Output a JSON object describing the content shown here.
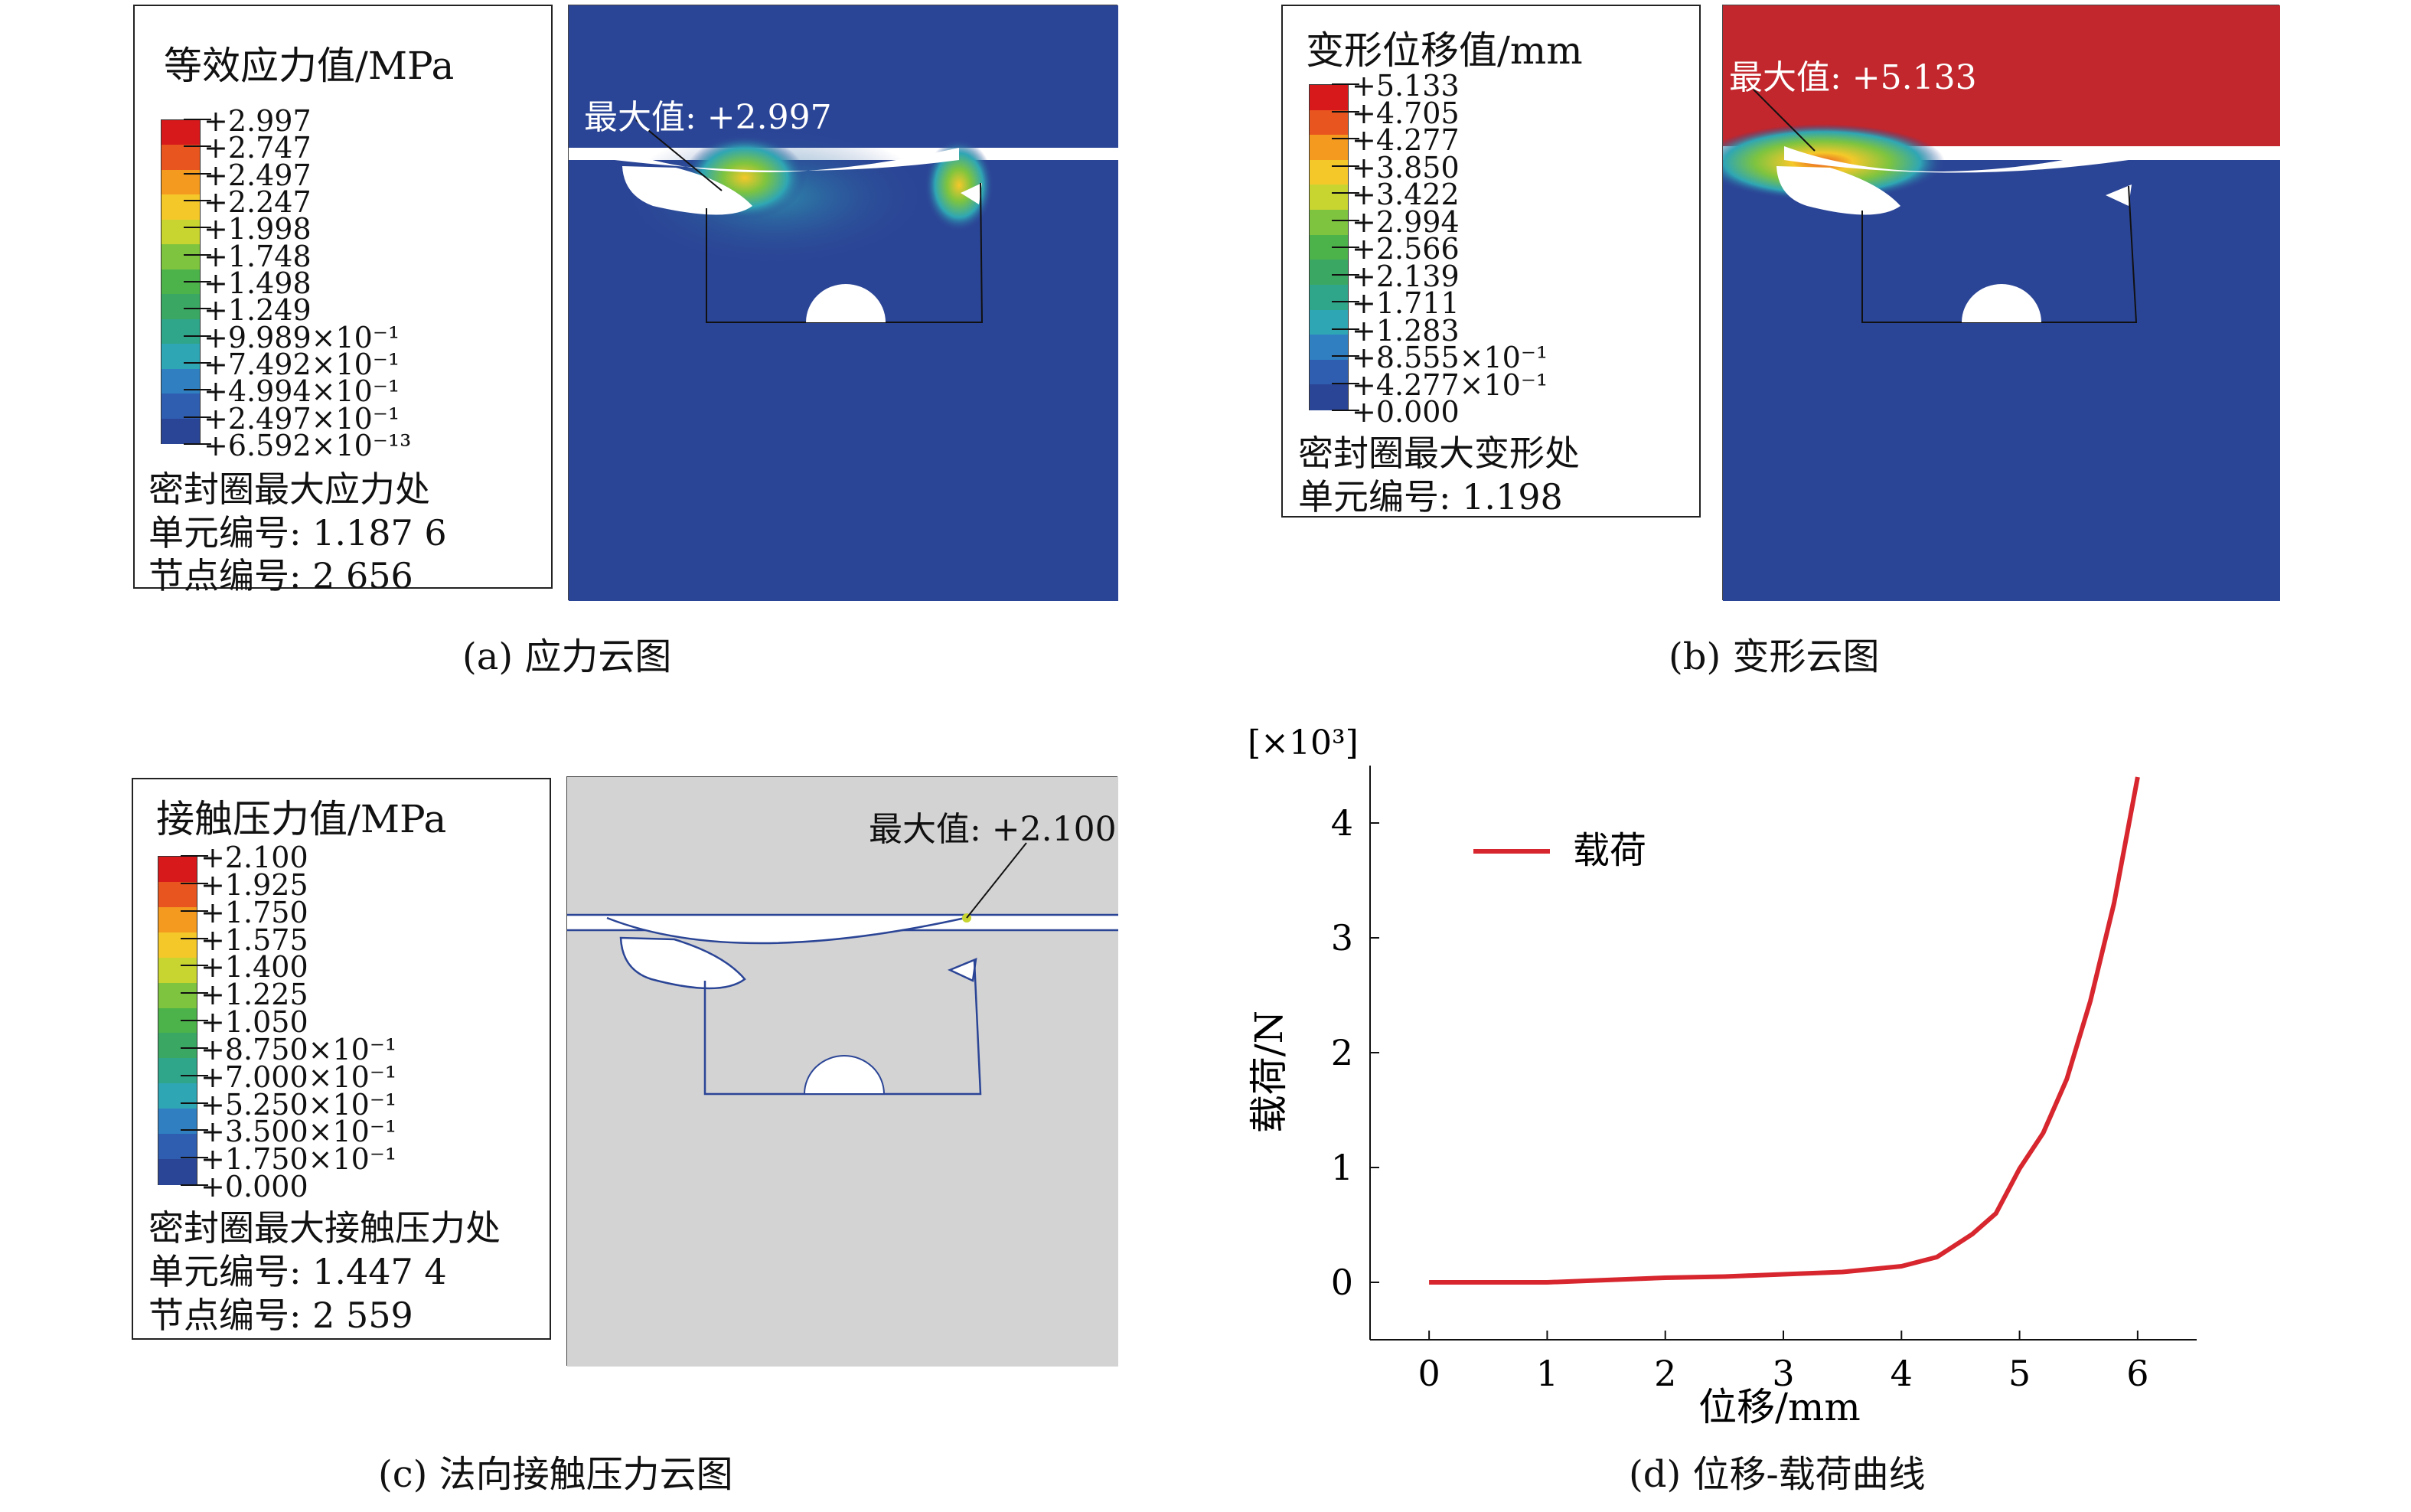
{
  "panel_a": {
    "legend_title": "等效应力值/MPa",
    "ticks": [
      "+2.997",
      "+2.747",
      "+2.497",
      "+2.247",
      "+1.998",
      "+1.748",
      "+1.498",
      "+1.249",
      "+9.989×10⁻¹",
      "+7.492×10⁻¹",
      "+4.994×10⁻¹",
      "+2.497×10⁻¹",
      "+6.592×10⁻¹³"
    ],
    "info": [
      "密封圈最大应力处",
      "单元编号: 1.187 6",
      "节点编号: 2 656"
    ],
    "max_label": "最大值: +2.997",
    "caption": "(a) 应力云图"
  },
  "panel_b": {
    "legend_title": "变形位移值/mm",
    "ticks": [
      "+5.133",
      "+4.705",
      "+4.277",
      "+3.850",
      "+3.422",
      "+2.994",
      "+2.566",
      "+2.139",
      "+1.711",
      "+1.283",
      "+8.555×10⁻¹",
      "+4.277×10⁻¹",
      "+0.000"
    ],
    "info": [
      "密封圈最大变形处",
      "单元编号: 1.198"
    ],
    "max_label": "最大值: +5.133",
    "caption": "(b) 变形云图"
  },
  "panel_c": {
    "legend_title": "接触压力值/MPa",
    "ticks": [
      "+2.100",
      "+1.925",
      "+1.750",
      "+1.575",
      "+1.400",
      "+1.225",
      "+1.050",
      "+8.750×10⁻¹",
      "+7.000×10⁻¹",
      "+5.250×10⁻¹",
      "+3.500×10⁻¹",
      "+1.750×10⁻¹",
      "+0.000"
    ],
    "info": [
      "密封圈最大接触压力处",
      "单元编号: 1.447 4",
      "节点编号: 2 559"
    ],
    "max_label": "最大值: +2.100",
    "caption": "(c) 法向接触压力云图"
  },
  "panel_d": {
    "caption": "(d) 位移-载荷曲线",
    "multiplier": "[×10³]"
  },
  "colors": {
    "contour_blue": "#2b4596",
    "contour_red": "#c1272d",
    "contact_gray": "#d3d3d3",
    "curve_red": "#d7262e",
    "colorbar": [
      "#d7191c",
      "#e8551e",
      "#f39a1f",
      "#f5c82a",
      "#c8d430",
      "#7ec43f",
      "#4cb34a",
      "#3aa863",
      "#2fa58a",
      "#2fa6b4",
      "#2f7fc1",
      "#2f5db0",
      "#2b4596"
    ]
  },
  "chart_data": {
    "type": "line",
    "title": "",
    "xlabel": "位移/mm",
    "ylabel": "载荷/N",
    "xlim": [
      -0.5,
      6.5
    ],
    "ylim": [
      -0.5,
      4.5
    ],
    "xticks": [
      "0",
      "1",
      "2",
      "3",
      "4",
      "5",
      "6"
    ],
    "yticks": [
      "0",
      "1",
      "2",
      "3",
      "4"
    ],
    "legend_position": "top-left",
    "series": [
      {
        "name": "载荷",
        "x": [
          0,
          0.5,
          1.0,
          1.5,
          2.0,
          2.5,
          3.0,
          3.5,
          4.0,
          4.3,
          4.6,
          4.8,
          5.0,
          5.2,
          5.4,
          5.6,
          5.8,
          6.0
        ],
        "y": [
          0.0,
          0.0,
          0.0,
          0.02,
          0.04,
          0.05,
          0.07,
          0.09,
          0.14,
          0.22,
          0.42,
          0.6,
          0.99,
          1.3,
          1.77,
          2.45,
          3.3,
          4.4
        ]
      }
    ]
  }
}
